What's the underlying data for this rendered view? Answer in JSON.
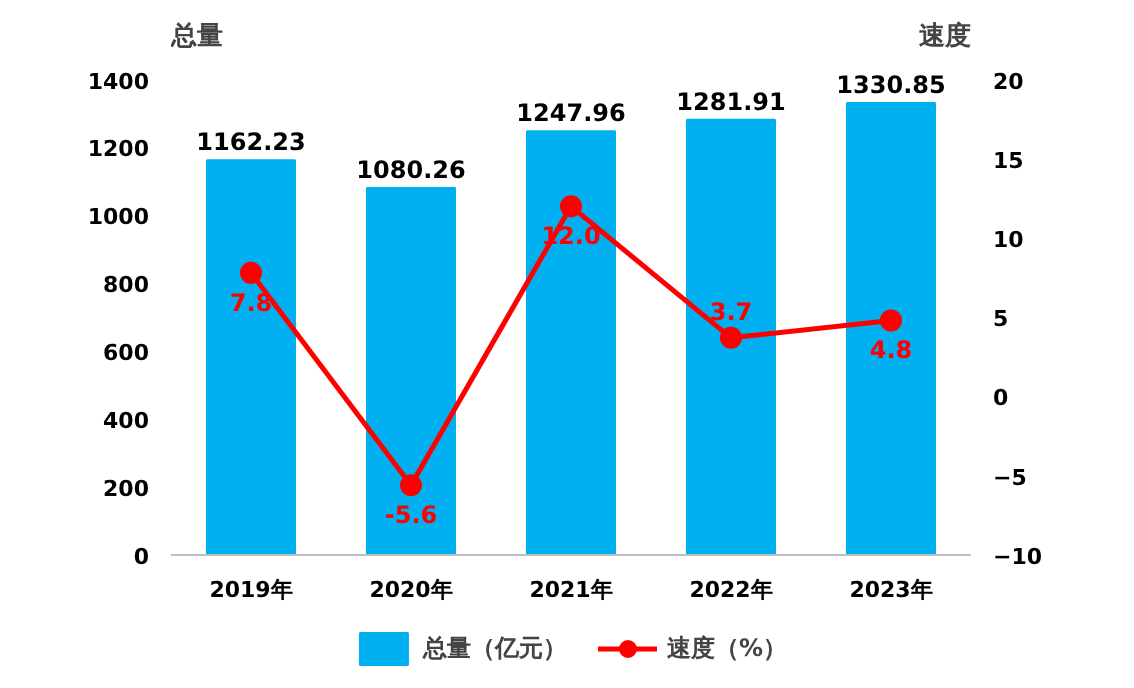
{
  "chart_data": {
    "type": "bar",
    "categories": [
      "2019年",
      "2020年",
      "2021年",
      "2022年",
      "2023年"
    ],
    "ylabel": "总量",
    "y2label": "速度",
    "series": [
      {
        "name": "总量（亿元）",
        "color": "#00b0f0",
        "values": [
          1162.23,
          1080.26,
          1247.96,
          1281.91,
          1330.85
        ],
        "value_labels": [
          "1162.23",
          "1080.26",
          "1247.96",
          "1281.91",
          "1330.85"
        ]
      },
      {
        "name": "速度（%）",
        "type": "line",
        "axis": "y2",
        "color": "#ff0000",
        "marker": "circle",
        "values": [
          7.8,
          -5.6,
          12.0,
          3.7,
          4.8
        ],
        "value_labels": [
          "7.8",
          "-5.6",
          "12.0",
          "3.7",
          "4.8"
        ]
      }
    ],
    "ylim": [
      0,
      1400
    ],
    "yticks": [
      0,
      200,
      400,
      600,
      800,
      1000,
      1200,
      1400
    ],
    "y2lim": [
      -10,
      20
    ],
    "y2ticks": [
      -10,
      -5,
      0,
      5,
      10,
      15,
      20
    ],
    "grid": false,
    "legend": "bottom"
  }
}
